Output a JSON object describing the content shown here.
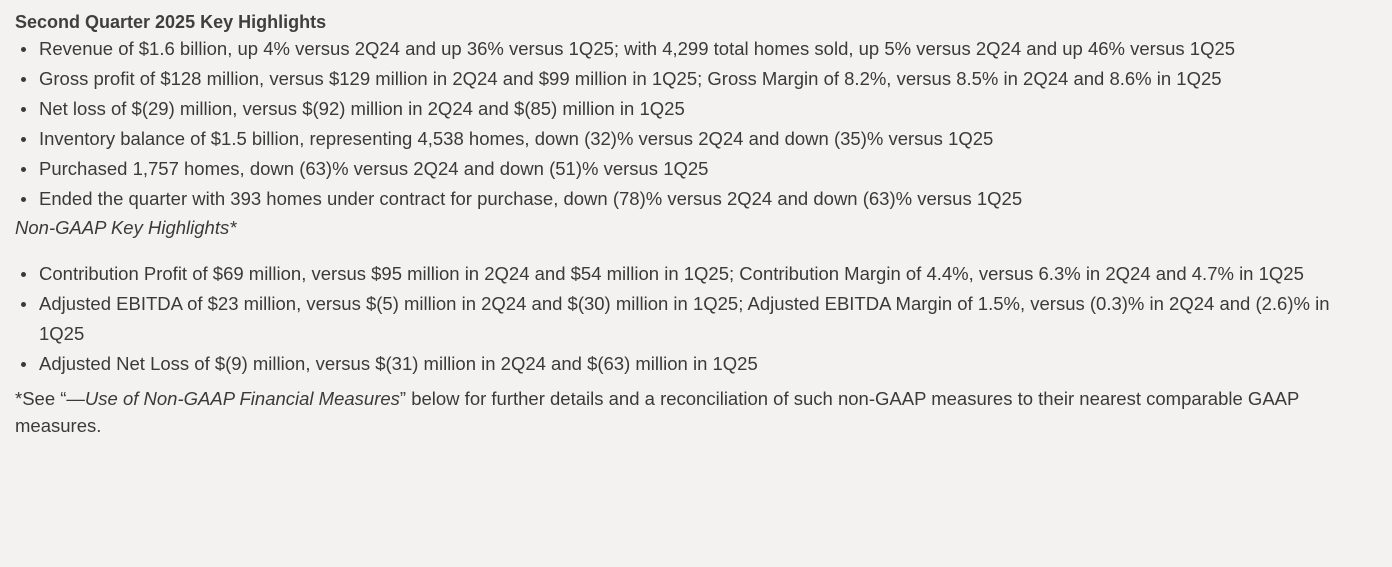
{
  "heading": "Second Quarter 2025 Key Highlights",
  "gaap_highlights": [
    "Revenue of $1.6 billion, up 4% versus 2Q24 and up 36% versus 1Q25; with 4,299 total homes sold, up 5% versus 2Q24 and up 46% versus 1Q25",
    "Gross profit of $128 million, versus $129 million in 2Q24 and $99 million in 1Q25; Gross Margin of 8.2%, versus 8.5% in 2Q24 and 8.6% in 1Q25",
    "Net loss of $(29) million, versus $(92) million in 2Q24 and $(85) million in 1Q25",
    "Inventory balance of $1.5 billion, representing 4,538 homes, down (32)% versus 2Q24 and down (35)% versus 1Q25",
    "Purchased 1,757 homes, down (63)% versus 2Q24 and down (51)% versus 1Q25",
    "Ended the quarter with 393 homes under contract for purchase, down (78)% versus 2Q24 and down (63)% versus 1Q25"
  ],
  "non_gaap_heading": "Non-GAAP Key Highlights*",
  "non_gaap_highlights": [
    "Contribution Profit of $69 million, versus $95 million in 2Q24 and $54 million in 1Q25; Contribution Margin of 4.4%, versus 6.3% in 2Q24 and 4.7% in 1Q25",
    "Adjusted EBITDA of $23 million, versus $(5) million in 2Q24 and $(30) million in 1Q25; Adjusted EBITDA Margin of 1.5%, versus (0.3)% in 2Q24 and (2.6)% in 1Q25",
    "Adjusted Net Loss of $(9) million, versus $(31) million in 2Q24 and $(63) million in 1Q25"
  ],
  "footnote": {
    "prefix": "*See “—",
    "link_text": "Use of Non-GAAP Financial Measures",
    "suffix": "” below for further details and a reconciliation of such non-GAAP measures to their nearest comparable GAAP measures."
  }
}
